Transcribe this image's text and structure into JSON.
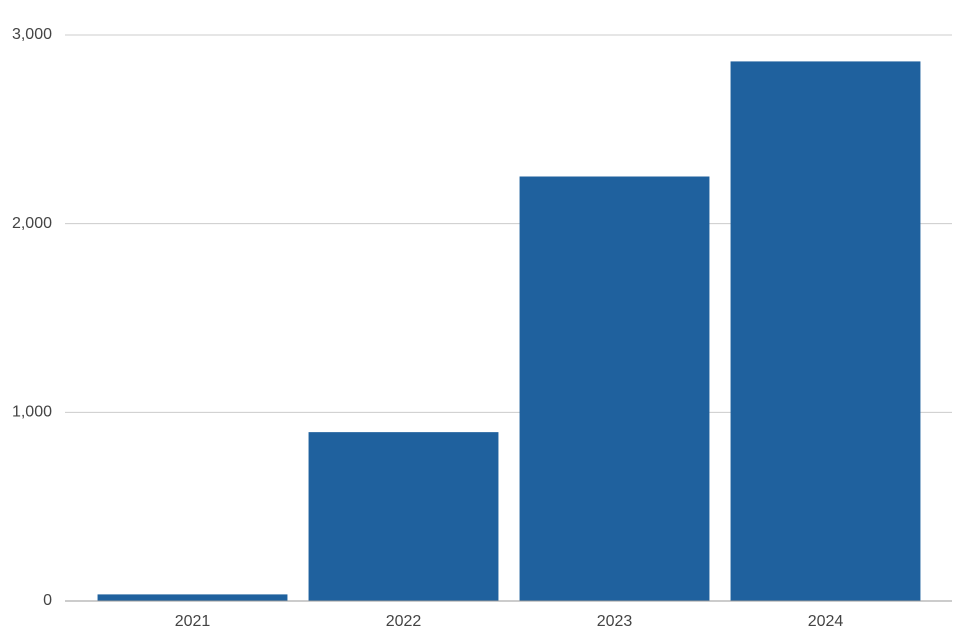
{
  "chart_data": {
    "type": "bar",
    "categories": [
      "2021",
      "2022",
      "2023",
      "2024"
    ],
    "values": [
      35,
      895,
      2250,
      2860
    ],
    "color": "#1f619e",
    "ylim": [
      0,
      3000
    ],
    "yticks": [
      0,
      {
        "value": 1000,
        "label": "1,000"
      },
      {
        "value": 2000,
        "label": "2,000"
      },
      {
        "value": 3000,
        "label": "3,000"
      }
    ],
    "grid": true
  }
}
